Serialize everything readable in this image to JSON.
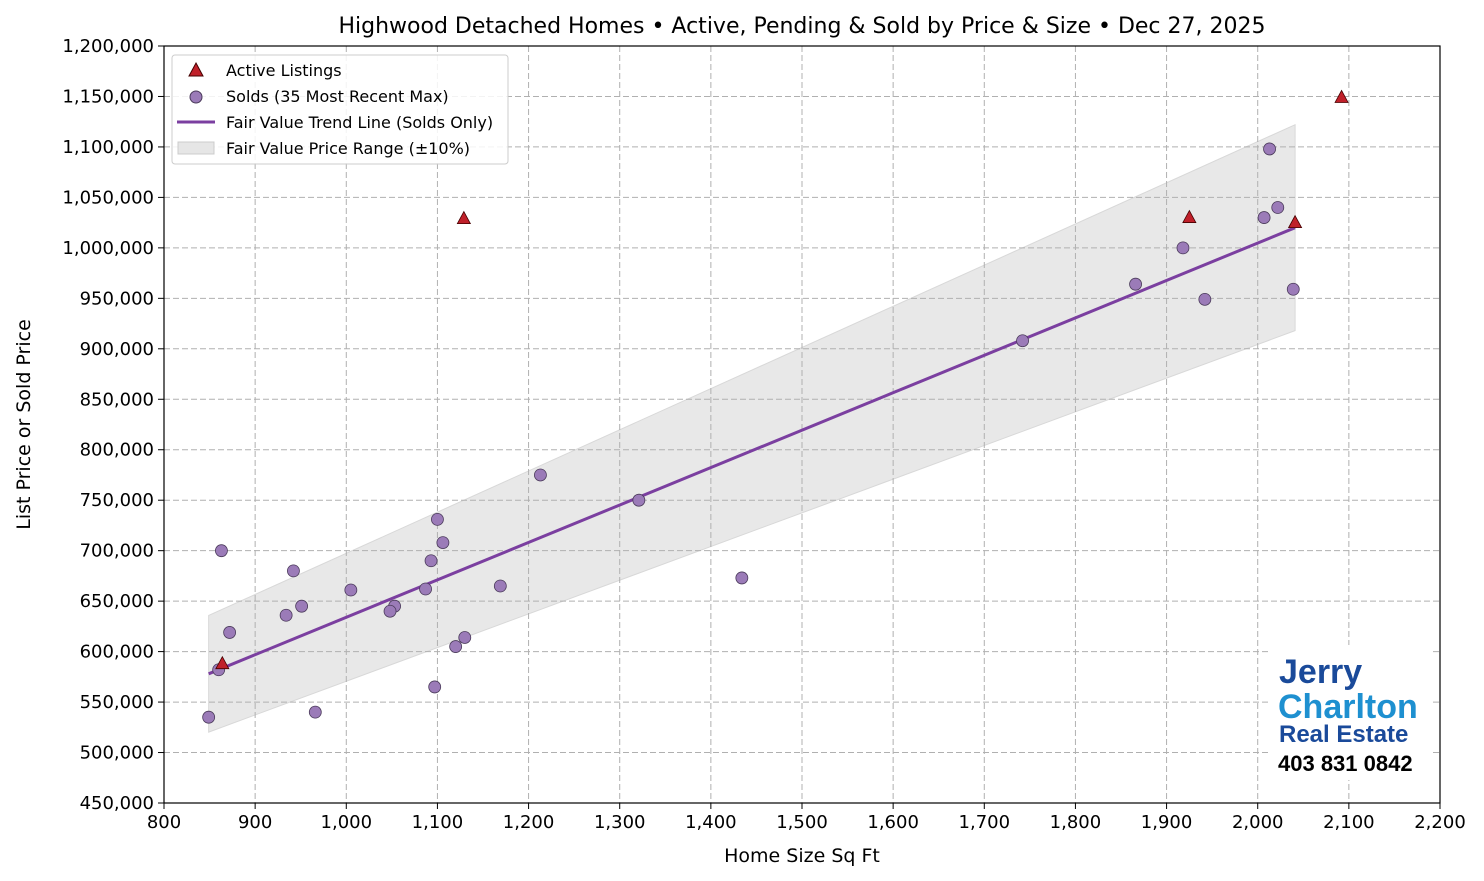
{
  "chart_data": {
    "type": "scatter",
    "title": "Highwood Detached Homes • Active, Pending & Sold by Price & Size • Dec 27, 2025",
    "xlabel": "Home Size Sq Ft",
    "ylabel": "List Price or Sold Price",
    "xlim": [
      800,
      2200
    ],
    "ylim": [
      450000,
      1200000
    ],
    "xticks": [
      800,
      900,
      1000,
      1100,
      1200,
      1300,
      1400,
      1500,
      1600,
      1700,
      1800,
      1900,
      2000,
      2100,
      2200
    ],
    "xtick_labels": [
      "800",
      "900",
      "1,000",
      "1,100",
      "1,200",
      "1,300",
      "1,400",
      "1,500",
      "1,600",
      "1,700",
      "1,800",
      "1,900",
      "2,000",
      "2,100",
      "2,200"
    ],
    "yticks": [
      450000,
      500000,
      550000,
      600000,
      650000,
      700000,
      750000,
      800000,
      850000,
      900000,
      950000,
      1000000,
      1050000,
      1100000,
      1150000,
      1200000
    ],
    "ytick_labels": [
      "450,000",
      "500,000",
      "550,000",
      "600,000",
      "650,000",
      "700,000",
      "750,000",
      "800,000",
      "850,000",
      "900,000",
      "950,000",
      "1,000,000",
      "1,050,000",
      "1,100,000",
      "1,150,000",
      "1,200,000"
    ],
    "grid": true,
    "legend_placement": "top-left",
    "series": [
      {
        "name": "Active Listings",
        "marker": "triangle",
        "color": "#c0202a",
        "points": [
          [
            2092,
            1149000
          ],
          [
            1129,
            1029000
          ],
          [
            1925,
            1030000
          ],
          [
            2041,
            1025000
          ],
          [
            864,
            588000
          ]
        ]
      },
      {
        "name": "Solds (35 Most Recent Max)",
        "marker": "circle",
        "color": "#9b7bb8",
        "points": [
          [
            2013,
            1098000
          ],
          [
            2022,
            1040000
          ],
          [
            2007,
            1030000
          ],
          [
            1918,
            1000000
          ],
          [
            1942,
            949000
          ],
          [
            2039,
            959000
          ],
          [
            1866,
            964000
          ],
          [
            1742,
            908000
          ],
          [
            1213,
            775000
          ],
          [
            1321,
            750000
          ],
          [
            1434,
            673000
          ],
          [
            1169,
            665000
          ],
          [
            1100,
            731000
          ],
          [
            1106,
            708000
          ],
          [
            1093,
            690000
          ],
          [
            1087,
            662000
          ],
          [
            1130,
            614000
          ],
          [
            1120,
            605000
          ],
          [
            1097,
            565000
          ],
          [
            1053,
            645000
          ],
          [
            1048,
            640000
          ],
          [
            1005,
            661000
          ],
          [
            951,
            645000
          ],
          [
            934,
            636000
          ],
          [
            942,
            680000
          ],
          [
            966,
            540000
          ],
          [
            863,
            700000
          ],
          [
            872,
            619000
          ],
          [
            860,
            582000
          ],
          [
            849,
            535000
          ]
        ]
      },
      {
        "name": "Fair Value Trend Line (Solds Only)",
        "type": "line",
        "color": "#7b3fa0",
        "points": [
          [
            849,
            578000
          ],
          [
            2041,
            1020000
          ]
        ]
      },
      {
        "name": "Fair Value Price Range (±10%)",
        "type": "band",
        "color": "#e6e6e6",
        "band_pct": 10
      }
    ]
  },
  "logo": {
    "line1": "Jerry",
    "line2": "Charlton",
    "line3": "Real Estate",
    "phone": "403 831 0842"
  }
}
